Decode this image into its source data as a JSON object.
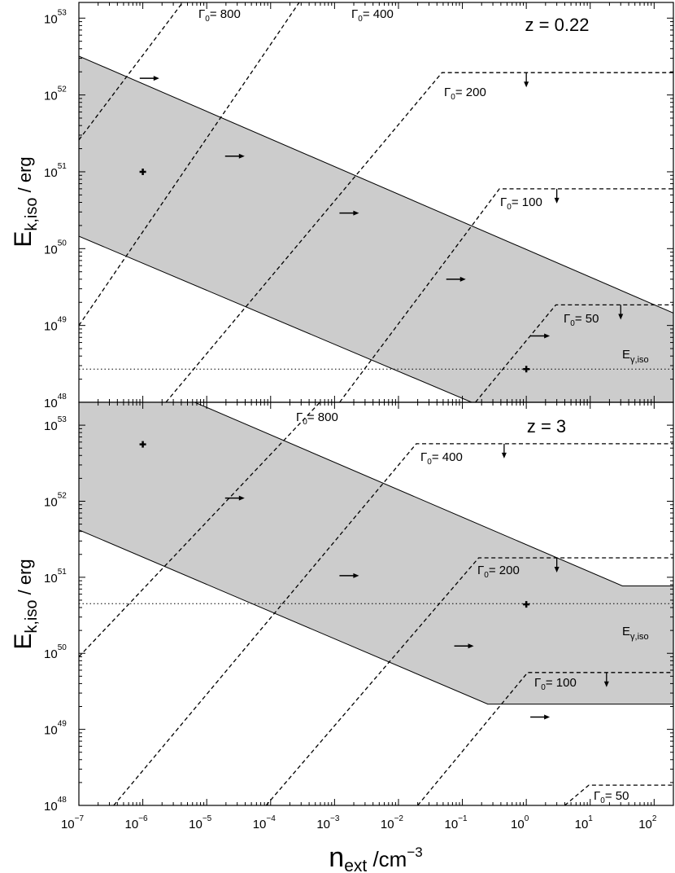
{
  "chart_data": [
    {
      "panel": "top",
      "type": "area",
      "annotation": "z = 0.22",
      "xlabel_main": "n",
      "xlabel_sub": "ext",
      "xlabel_unit": " /cm",
      "xlabel_sup": "−3",
      "ylabel_main": "E",
      "ylabel_sub": "k,iso",
      "ylabel_unit": " / erg",
      "x_scale": "log",
      "y_scale": "log",
      "xlim": [
        1e-07,
        200
      ],
      "ylim": [
        1e+48,
        1.6e+53
      ],
      "x_tick_exponents": [
        -7,
        -6,
        -5,
        -4,
        -3,
        -2,
        -1,
        0,
        1,
        2
      ],
      "y_tick_exponents": [
        48,
        49,
        50,
        51,
        52,
        53
      ],
      "shaded_region": {
        "upper": [
          [
            1e-07,
            3.2e+52
          ],
          [
            200,
            1.45e+49
          ]
        ],
        "lower": [
          [
            1e-07,
            1.45e+50
          ],
          [
            0.14,
            1e+48
          ]
        ]
      },
      "data_points": [
        {
          "x": 1e-06,
          "y": 1e+51
        },
        {
          "x": 1.0,
          "y": 2.7e+48
        }
      ],
      "e_gamma_iso": {
        "label_main": "E",
        "label_sub": "γ,iso",
        "y": 2.7e+48
      },
      "gamma_lines": [
        {
          "label_main": "Γ",
          "label_sub": "0",
          "label_value": "= 800",
          "points": [
            [
              1e-07,
              2.6e+51
            ],
            [
              4.2e-06,
              1.6e+53
            ]
          ],
          "plateau": null,
          "arrow_right": {
            "x": 1.2e-06,
            "y": 1.65e+52
          }
        },
        {
          "label_main": "Γ",
          "label_sub": "0",
          "label_value": "= 400",
          "points": [
            [
              1e-07,
              1e+49
            ],
            [
              0.00028,
              1.6e+53
            ]
          ],
          "plateau": null,
          "arrow_right": {
            "x": 2.6e-05,
            "y": 1.6e+51
          }
        },
        {
          "label_main": "Γ",
          "label_sub": "0",
          "label_value": "= 200",
          "points": [
            [
              2.3e-06,
              1e+48
            ],
            [
              0.048,
              1.95e+52
            ]
          ],
          "plateau": 1.95e+52,
          "arrow_right": {
            "x": 0.0016,
            "y": 2.9e+50
          },
          "arrow_down": {
            "x": 1.0
          }
        },
        {
          "label_main": "Γ",
          "label_sub": "0",
          "label_value": "= 100",
          "points": [
            [
              0.0012,
              1e+48
            ],
            [
              0.38,
              6e+50
            ]
          ],
          "plateau": 6e+50,
          "arrow_right": {
            "x": 0.075,
            "y": 4e+49
          },
          "arrow_down": {
            "x": 3.0
          }
        },
        {
          "label_main": "Γ",
          "label_sub": "0",
          "label_value": "= 50",
          "points": [
            [
              0.16,
              1e+48
            ],
            [
              2.9,
              1.85e+49
            ]
          ],
          "plateau": 1.85e+49,
          "arrow_right": {
            "x": 1.55,
            "y": 7.3e+48
          },
          "arrow_down": {
            "x": 30
          }
        }
      ]
    },
    {
      "panel": "bottom",
      "type": "area",
      "annotation": "z = 3",
      "xlabel_main": "n",
      "xlabel_sub": "ext",
      "xlabel_unit": " /cm",
      "xlabel_sup": "−3",
      "ylabel_main": "E",
      "ylabel_sub": "k,iso",
      "ylabel_unit": " / erg",
      "x_scale": "log",
      "y_scale": "log",
      "xlim": [
        1e-07,
        200
      ],
      "ylim": [
        1e+48,
        2e+53
      ],
      "x_tick_exponents": [
        -7,
        -6,
        -5,
        -4,
        -3,
        -2,
        -1,
        0,
        1,
        2
      ],
      "y_tick_exponents": [
        48,
        49,
        50,
        51,
        52,
        53
      ],
      "shaded_region": {
        "upper": [
          [
            1e-07,
            2e+53
          ],
          [
            6.5e-06,
            2e+53
          ],
          [
            32,
            7.7e+50
          ],
          [
            200,
            7.7e+50
          ]
        ],
        "lower": [
          [
            1e-07,
            4.2e+51
          ],
          [
            0.25,
            2.15e+49
          ],
          [
            200,
            2.15e+49
          ]
        ]
      },
      "data_points": [
        {
          "x": 1e-06,
          "y": 5.6e+52
        },
        {
          "x": 1.0,
          "y": 4.4e+50
        }
      ],
      "e_gamma_iso": {
        "label_main": "E",
        "label_sub": "γ,iso",
        "y": 4.5e+50
      },
      "gamma_lines": [
        {
          "label_main": "Γ",
          "label_sub": "0",
          "label_value": "= 800",
          "points": [
            [
              1e-07,
              9e+49
            ],
            [
              0.00059,
              2e+53
            ]
          ],
          "plateau": null,
          "arrow_right": {
            "x": 2.6e-05,
            "y": 1.1e+52
          }
        },
        {
          "label_main": "Γ",
          "label_sub": "0",
          "label_value": "= 400",
          "points": [
            [
              3.5e-07,
              1e+48
            ],
            [
              0.019,
              5.7e+52
            ]
          ],
          "plateau": 5.7e+52,
          "arrow_right": {
            "x": 0.0016,
            "y": 1.05e+51
          },
          "arrow_down": {
            "x": 0.45
          }
        },
        {
          "label_main": "Γ",
          "label_sub": "0",
          "label_value": "= 200",
          "points": [
            [
              8.5e-05,
              1e+48
            ],
            [
              0.18,
              1.8e+51
            ]
          ],
          "plateau": 1.8e+51,
          "arrow_right": {
            "x": 0.1,
            "y": 1.25e+50
          },
          "arrow_down": {
            "x": 3.0
          }
        },
        {
          "label_main": "Γ",
          "label_sub": "0",
          "label_value": "= 100",
          "points": [
            [
              0.02,
              1e+48
            ],
            [
              1.05,
              5.6e+49
            ]
          ],
          "plateau": 5.6e+49,
          "arrow_right": {
            "x": 1.55,
            "y": 1.45e+49
          },
          "arrow_down": {
            "x": 18
          }
        },
        {
          "label_main": "Γ",
          "label_sub": "0",
          "label_value": "= 50",
          "points": [
            [
              4.0,
              1e+48
            ],
            [
              9.5,
              1.85e+48
            ]
          ],
          "plateau": 1.85e+48,
          "arrow_right": null,
          "arrow_down": null
        }
      ]
    }
  ]
}
